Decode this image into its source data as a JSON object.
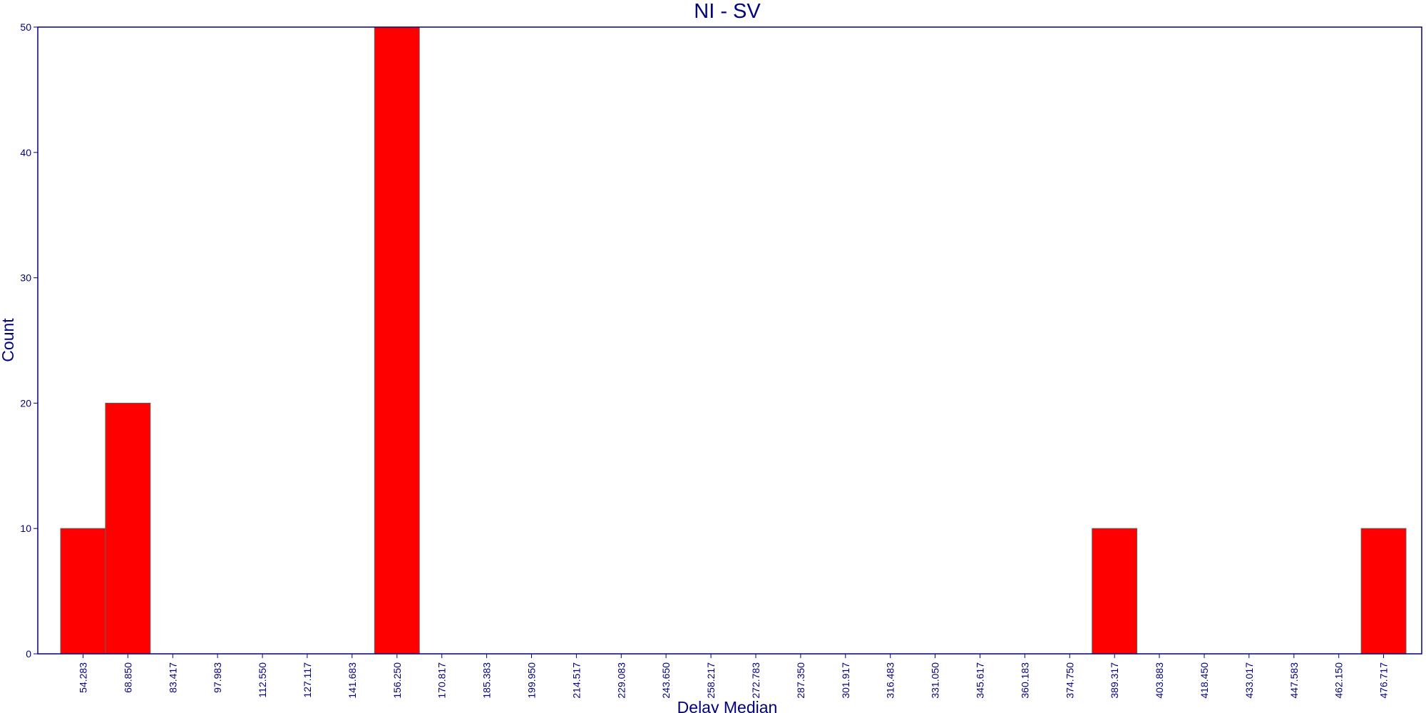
{
  "chart_data": {
    "type": "bar",
    "title": "NI - SV",
    "xlabel": "Delay Median",
    "ylabel": "Count",
    "ylim": [
      0,
      50
    ],
    "yticks": [
      "0",
      "10",
      "20",
      "30",
      "40",
      "50"
    ],
    "categories": [
      "54.283",
      "68.850",
      "83.417",
      "97.983",
      "112.550",
      "127.117",
      "141.683",
      "156.250",
      "170.817",
      "185.383",
      "199.950",
      "214.517",
      "229.083",
      "243.650",
      "258.217",
      "272.783",
      "287.350",
      "301.917",
      "316.483",
      "331.050",
      "345.617",
      "360.183",
      "374.750",
      "389.317",
      "403.883",
      "418.450",
      "433.017",
      "447.583",
      "462.150",
      "476.717"
    ],
    "values": [
      10,
      20,
      0,
      0,
      0,
      0,
      0,
      50,
      0,
      0,
      0,
      0,
      0,
      0,
      0,
      0,
      0,
      0,
      0,
      0,
      0,
      0,
      0,
      10,
      0,
      0,
      0,
      0,
      0,
      10
    ],
    "grid": false,
    "colors": {
      "bar": "#ff0000",
      "bar_edge": "#606060",
      "axis": "#000080",
      "text": "#000080"
    }
  }
}
